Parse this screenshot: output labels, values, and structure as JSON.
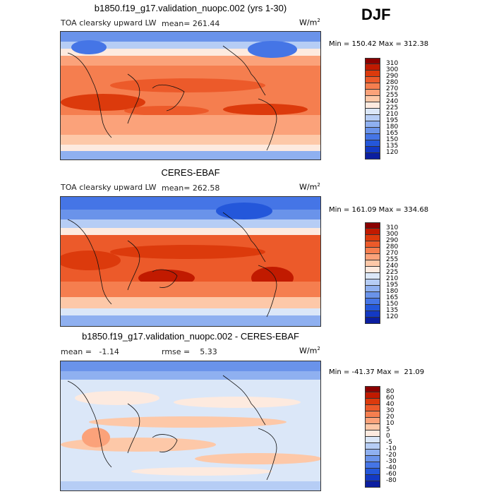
{
  "season": "DJF",
  "panels": [
    {
      "title": "b1850.f19_g17.validation_nuopc.002 (yrs 1-30)",
      "variable": "TOA clearsky upward LW",
      "stat1": "mean= 261.44",
      "stat2": "",
      "units_base": "W/m",
      "units_exp": "2",
      "minmax": "Min = 150.42 Max = 312.38",
      "levels": [
        "310",
        "300",
        "290",
        "280",
        "270",
        "255",
        "240",
        "225",
        "210",
        "195",
        "180",
        "165",
        "150",
        "135",
        "120"
      ],
      "colors": [
        "#8b0000",
        "#c11a00",
        "#dc3a0c",
        "#ec5a2a",
        "#f57e4f",
        "#fba27a",
        "#fdc8a8",
        "#fdeadf",
        "#dbe7f8",
        "#b6cdf5",
        "#8fb0f0",
        "#6a93ea",
        "#4575e6",
        "#2457da",
        "#1339c4",
        "#0b1ea0"
      ]
    },
    {
      "title": "CERES-EBAF",
      "variable": "TOA clearsky upward LW",
      "stat1": "mean= 262.58",
      "stat2": "",
      "units_base": "W/m",
      "units_exp": "2",
      "minmax": "Min = 161.09 Max = 334.68",
      "levels": [
        "310",
        "300",
        "290",
        "280",
        "270",
        "255",
        "240",
        "225",
        "210",
        "195",
        "180",
        "165",
        "150",
        "135",
        "120"
      ],
      "colors": [
        "#8b0000",
        "#c11a00",
        "#dc3a0c",
        "#ec5a2a",
        "#f57e4f",
        "#fba27a",
        "#fdc8a8",
        "#fdeadf",
        "#dbe7f8",
        "#b6cdf5",
        "#8fb0f0",
        "#6a93ea",
        "#4575e6",
        "#2457da",
        "#1339c4",
        "#0b1ea0"
      ]
    },
    {
      "title": "b1850.f19_g17.validation_nuopc.002 - CERES-EBAF",
      "variable": "",
      "stat1": "mean =   -1.14",
      "stat2": "rmse =    5.33",
      "units_base": "W/m",
      "units_exp": "2",
      "minmax": "Min = -41.37 Max =  21.09",
      "levels": [
        "80",
        "60",
        "40",
        "30",
        "20",
        "10",
        "5",
        "0",
        "-5",
        "-10",
        "-20",
        "-30",
        "-40",
        "-60",
        "-80"
      ],
      "colors": [
        "#8b0000",
        "#c11a00",
        "#dc3a0c",
        "#ec5a2a",
        "#f57e4f",
        "#fba27a",
        "#fdc8a8",
        "#fdeadf",
        "#dbe7f8",
        "#b6cdf5",
        "#8fb0f0",
        "#6a93ea",
        "#4575e6",
        "#2457da",
        "#1339c4",
        "#0b1ea0"
      ]
    }
  ]
}
